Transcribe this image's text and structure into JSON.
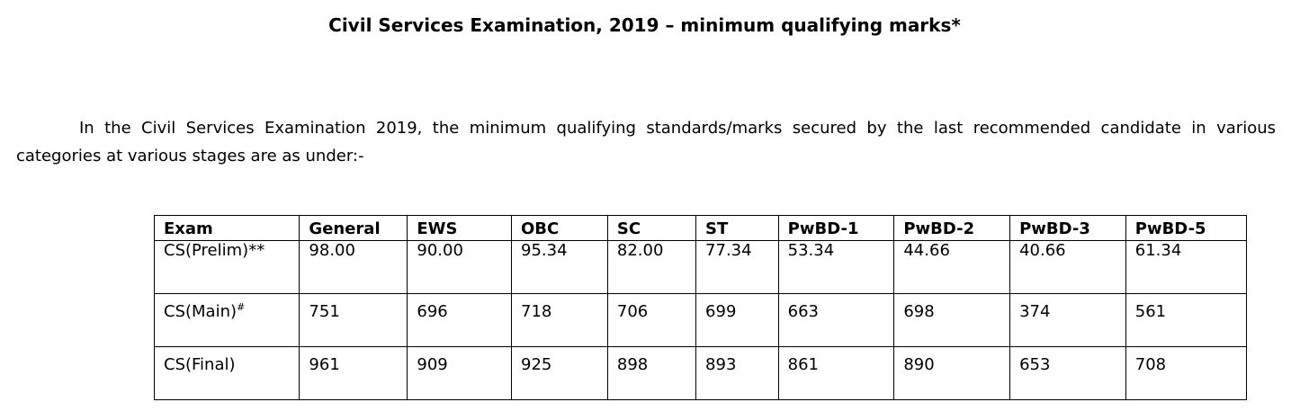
{
  "title": "Civil Services Examination, 2019 – minimum qualifying marks*",
  "intro": "In the Civil Services Examination 2019, the minimum qualifying standards/marks secured by the last recommended candidate in various categories at various stages are as under:-",
  "table": {
    "headers": [
      "Exam",
      "General",
      "EWS",
      "OBC",
      "SC",
      "ST",
      "PwBD-1",
      "PwBD-2",
      "PwBD-3",
      "PwBD-5"
    ],
    "rows": [
      {
        "exam": "CS(Prelim)**",
        "exam_sup": "",
        "values": [
          "98.00",
          "90.00",
          "95.34",
          "82.00",
          "77.34",
          "53.34",
          "44.66",
          "40.66",
          "61.34"
        ]
      },
      {
        "exam": "CS(Main)",
        "exam_sup": "#",
        "values": [
          "751",
          "696",
          "718",
          "706",
          "699",
          "663",
          "698",
          "374",
          "561"
        ]
      },
      {
        "exam": "CS(Final)",
        "exam_sup": "",
        "values": [
          "961",
          "909",
          "925",
          "898",
          "893",
          "861",
          "890",
          "653",
          "708"
        ]
      }
    ]
  }
}
